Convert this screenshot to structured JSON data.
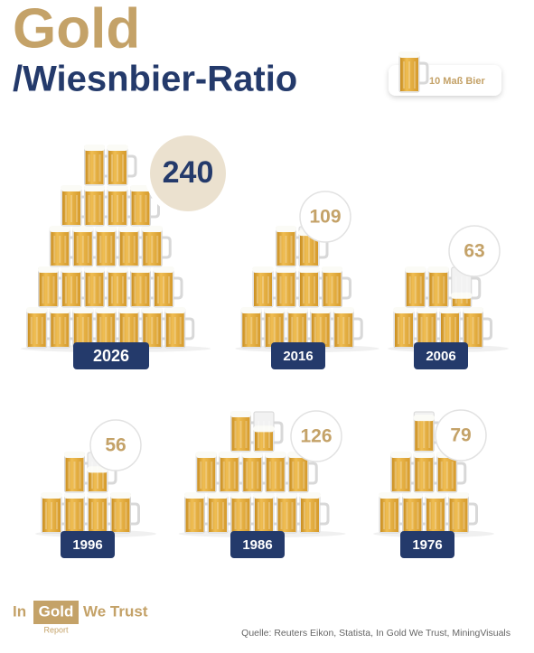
{
  "chart_data": {
    "type": "pictogram",
    "title": "Gold",
    "subtitle": "/Wiesnbier-Ratio",
    "unit": {
      "value": 10,
      "label": "10 Maß Bier"
    },
    "categories": [
      "2026",
      "2016",
      "2006",
      "1996",
      "1986",
      "1976"
    ],
    "values": [
      240,
      109,
      63,
      56,
      126,
      79
    ],
    "color": "#e3aa3c",
    "source": "Quelle: Reuters Eikon, Statista, In Gold We Trust, MiningVisuals",
    "logo": {
      "left": "In",
      "badge": "Gold",
      "right": "We Trust",
      "sub": "Report"
    }
  }
}
